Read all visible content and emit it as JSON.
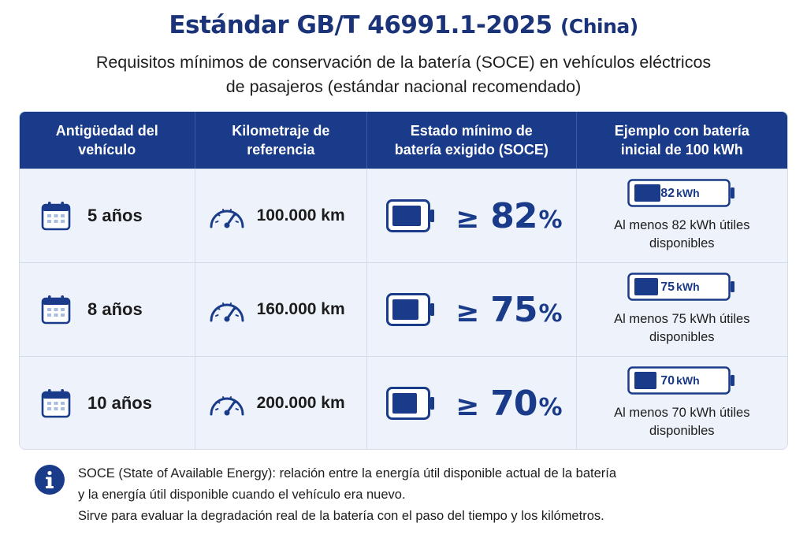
{
  "title": {
    "main": "Estándar GB/T 46991.1-2025",
    "country": "(China)"
  },
  "subtitle": {
    "line1": "Requisitos mínimos de conservación de la batería (SOCE) en vehículos eléctricos",
    "line2": "de pasajeros (estándar nacional recomendado)"
  },
  "table": {
    "headers": [
      {
        "line1": "Antigüedad del",
        "line2": "vehículo"
      },
      {
        "line1": "Kilometraje de",
        "line2": "referencia"
      },
      {
        "line1": "Estado mínimo de",
        "line2": "batería exigido (SOCE)"
      },
      {
        "line1": "Ejemplo con batería",
        "line2": "inicial de 100 kWh"
      }
    ],
    "rows": [
      {
        "age": "5 años",
        "km": "100.000 km",
        "ge": "≥",
        "pct": "82",
        "pct_sign": "%",
        "level": 0.82,
        "kwh": "82",
        "kwh_unit": "kWh",
        "example_line1": "Al menos 82 kWh útiles",
        "example_line2": "disponibles"
      },
      {
        "age": "8 años",
        "km": "160.000 km",
        "ge": "≥",
        "pct": "75",
        "pct_sign": "%",
        "level": 0.75,
        "kwh": "75",
        "kwh_unit": "kWh",
        "example_line1": "Al menos 75 kWh útiles",
        "example_line2": "disponibles"
      },
      {
        "age": "10 años",
        "km": "200.000 km",
        "ge": "≥",
        "pct": "70",
        "pct_sign": "%",
        "level": 0.7,
        "kwh": "70",
        "kwh_unit": "kWh",
        "example_line1": "Al menos 70 kWh útiles",
        "example_line2": "disponibles"
      }
    ]
  },
  "note": {
    "line1": "SOCE (State of Available Energy): relación entre la energía útil disponible actual de la batería",
    "line2": "y la energía útil disponible cuando el vehículo era nuevo.",
    "line3": "Sirve para evaluar la degradación real de la batería con el paso del tiempo y los kilómetros."
  },
  "colors": {
    "brand": "#1a3a8a",
    "row_bg": "#eef3fb",
    "title": "#1b3378"
  },
  "icons": [
    "calendar-icon",
    "speedometer-icon",
    "battery-icon",
    "info-icon"
  ]
}
